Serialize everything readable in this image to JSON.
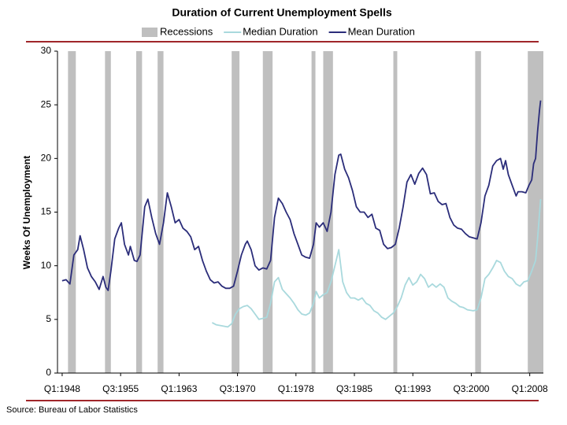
{
  "chart_data": {
    "type": "line",
    "title": "Duration of Current Unemployment Spells",
    "ylabel": "Weeks Of Unemployment",
    "source": "Source: Bureau of Labor Statistics",
    "xlim": [
      1947.4,
      2009.75
    ],
    "ylim": [
      0,
      30
    ],
    "yticks": [
      0,
      5,
      10,
      15,
      20,
      25,
      30
    ],
    "xticks": [
      {
        "value": 1948,
        "label": "Q1:1948"
      },
      {
        "value": 1955.5,
        "label": "Q3:1955"
      },
      {
        "value": 1963,
        "label": "Q1:1963"
      },
      {
        "value": 1970.5,
        "label": "Q3:1970"
      },
      {
        "value": 1978,
        "label": "Q1:1978"
      },
      {
        "value": 1985.5,
        "label": "Q3:1985"
      },
      {
        "value": 1993,
        "label": "Q1:1993"
      },
      {
        "value": 2000.5,
        "label": "Q3:2000"
      },
      {
        "value": 2008,
        "label": "Q1:2008"
      }
    ],
    "recessions": {
      "name": "Recessions",
      "color": "#bfbfbf",
      "ranges": [
        [
          1948.75,
          1949.75
        ],
        [
          1953.5,
          1954.25
        ],
        [
          1957.5,
          1958.25
        ],
        [
          1960.25,
          1961.0
        ],
        [
          1969.75,
          1970.75
        ],
        [
          1973.75,
          1975.0
        ],
        [
          1980.0,
          1980.5
        ],
        [
          1981.5,
          1982.75
        ],
        [
          1990.5,
          1991.0
        ],
        [
          2001.0,
          2001.75
        ],
        [
          2007.75,
          2009.75
        ]
      ]
    },
    "series": [
      {
        "name": "Median Duration",
        "color": "#a9d9dd",
        "x": [
          1967.25,
          1967.75,
          1968.5,
          1969.25,
          1969.75,
          1970.25,
          1970.75,
          1971.25,
          1971.75,
          1972.25,
          1972.75,
          1973.25,
          1973.75,
          1974.25,
          1974.75,
          1975.25,
          1975.75,
          1976.25,
          1976.75,
          1977.25,
          1977.75,
          1978.25,
          1978.75,
          1979.25,
          1979.75,
          1980.25,
          1980.6,
          1981.0,
          1981.5,
          1982.0,
          1982.5,
          1983.0,
          1983.5,
          1984.0,
          1984.5,
          1985.0,
          1985.5,
          1986.0,
          1986.5,
          1987.0,
          1987.5,
          1988.0,
          1988.5,
          1989.0,
          1989.5,
          1990.0,
          1990.5,
          1991.0,
          1991.5,
          1992.0,
          1992.5,
          1993.0,
          1993.5,
          1994.0,
          1994.5,
          1995.0,
          1995.5,
          1996.0,
          1996.5,
          1997.0,
          1997.5,
          1998.0,
          1998.5,
          1999.0,
          1999.5,
          2000.0,
          2000.75,
          2001.25,
          2001.75,
          2002.25,
          2002.75,
          2003.25,
          2003.75,
          2004.25,
          2004.75,
          2005.25,
          2005.75,
          2006.25,
          2006.75,
          2007.25,
          2007.75,
          2008.25,
          2008.75,
          2009.0,
          2009.4
        ],
        "values": [
          4.7,
          4.5,
          4.4,
          4.3,
          4.6,
          5.5,
          6.0,
          6.2,
          6.3,
          6.0,
          5.5,
          5.0,
          5.1,
          5.2,
          6.5,
          8.5,
          8.9,
          7.8,
          7.4,
          7.0,
          6.5,
          5.9,
          5.5,
          5.4,
          5.6,
          6.5,
          7.6,
          7.0,
          7.3,
          7.5,
          8.5,
          10.0,
          11.5,
          8.5,
          7.5,
          7.0,
          7.0,
          6.8,
          7.0,
          6.5,
          6.3,
          5.8,
          5.6,
          5.2,
          5.0,
          5.3,
          5.6,
          6.2,
          7.0,
          8.2,
          8.9,
          8.2,
          8.5,
          9.2,
          8.8,
          8.0,
          8.3,
          8.0,
          8.3,
          8.0,
          7.0,
          6.7,
          6.5,
          6.2,
          6.1,
          5.9,
          5.8,
          5.9,
          7.0,
          8.8,
          9.2,
          9.8,
          10.5,
          10.3,
          9.5,
          9.0,
          8.8,
          8.3,
          8.1,
          8.5,
          8.6,
          9.5,
          10.5,
          12.5,
          16.2
        ]
      },
      {
        "name": "Mean Duration",
        "color": "#2b2d7a",
        "x": [
          1948.0,
          1948.5,
          1949.0,
          1949.5,
          1950.0,
          1950.3,
          1950.75,
          1951.25,
          1951.75,
          1952.25,
          1952.75,
          1953.25,
          1953.6,
          1953.9,
          1954.25,
          1954.75,
          1955.25,
          1955.6,
          1956.0,
          1956.5,
          1956.75,
          1957.25,
          1957.6,
          1958.0,
          1958.6,
          1959.0,
          1959.5,
          1960.0,
          1960.5,
          1961.0,
          1961.5,
          1962.0,
          1962.5,
          1963.0,
          1963.5,
          1964.0,
          1964.5,
          1965.0,
          1965.5,
          1966.0,
          1966.5,
          1967.0,
          1967.5,
          1968.0,
          1968.5,
          1969.0,
          1969.5,
          1970.0,
          1970.5,
          1971.0,
          1971.5,
          1971.75,
          1972.25,
          1972.75,
          1973.25,
          1973.75,
          1974.25,
          1974.75,
          1975.25,
          1975.75,
          1976.25,
          1976.75,
          1977.25,
          1977.75,
          1978.25,
          1978.75,
          1979.25,
          1979.75,
          1980.25,
          1980.6,
          1981.0,
          1981.5,
          1982.0,
          1982.5,
          1983.0,
          1983.5,
          1983.75,
          1984.25,
          1984.75,
          1985.25,
          1985.75,
          1986.25,
          1986.75,
          1987.25,
          1987.75,
          1988.25,
          1988.75,
          1989.25,
          1989.75,
          1990.25,
          1990.75,
          1991.25,
          1991.75,
          1992.25,
          1992.75,
          1993.25,
          1993.75,
          1994.25,
          1994.75,
          1995.25,
          1995.75,
          1996.25,
          1996.75,
          1997.25,
          1997.75,
          1998.25,
          1998.75,
          1999.25,
          1999.75,
          2000.25,
          2000.75,
          2001.25,
          2001.75,
          2002.25,
          2002.75,
          2003.25,
          2003.75,
          2004.25,
          2004.6,
          2004.9,
          2005.25,
          2005.75,
          2006.25,
          2006.5,
          2007.0,
          2007.5,
          2007.9,
          2008.25,
          2008.5,
          2008.75,
          2009.0,
          2009.25,
          2009.4
        ],
        "values": [
          8.6,
          8.7,
          8.3,
          11.0,
          11.5,
          12.8,
          11.5,
          9.8,
          9.0,
          8.5,
          7.8,
          9.0,
          8.0,
          7.7,
          9.5,
          12.5,
          13.5,
          14.0,
          12.0,
          11.0,
          11.8,
          10.5,
          10.4,
          11.0,
          15.5,
          16.2,
          14.5,
          13.0,
          12.0,
          14.0,
          16.8,
          15.5,
          14.0,
          14.3,
          13.5,
          13.2,
          12.7,
          11.5,
          11.8,
          10.5,
          9.5,
          8.7,
          8.4,
          8.5,
          8.1,
          7.9,
          7.9,
          8.1,
          9.5,
          11.0,
          12.0,
          12.3,
          11.5,
          10.0,
          9.6,
          9.8,
          9.7,
          10.5,
          14.5,
          16.3,
          15.8,
          15.0,
          14.3,
          13.0,
          12.0,
          11.0,
          10.8,
          10.7,
          12.0,
          14.0,
          13.6,
          14.0,
          13.2,
          15.0,
          18.5,
          20.3,
          20.4,
          19.0,
          18.2,
          17.0,
          15.5,
          15.0,
          15.0,
          14.5,
          14.8,
          13.5,
          13.3,
          12.0,
          11.6,
          11.7,
          12.0,
          13.5,
          15.5,
          17.8,
          18.5,
          17.6,
          18.6,
          19.1,
          18.5,
          16.7,
          16.8,
          16.0,
          15.7,
          15.8,
          14.5,
          13.8,
          13.5,
          13.4,
          13.0,
          12.7,
          12.6,
          12.5,
          14.0,
          16.5,
          17.5,
          19.3,
          19.8,
          20.0,
          19.0,
          19.8,
          18.5,
          17.5,
          16.5,
          16.9,
          16.9,
          16.8,
          17.5,
          18.0,
          19.5,
          20.0,
          22.5,
          24.5,
          25.4
        ]
      }
    ]
  }
}
